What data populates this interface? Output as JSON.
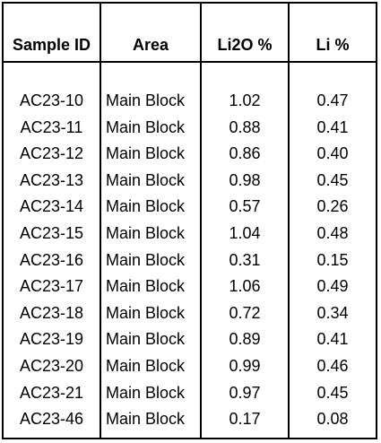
{
  "table": {
    "headers": [
      "Sample ID",
      "Area",
      "Li2O %",
      "Li %"
    ],
    "rows": [
      [
        "AC23-10",
        "Main Block",
        "1.02",
        "0.47"
      ],
      [
        "AC23-11",
        "Main Block",
        "0.88",
        "0.41"
      ],
      [
        "AC23-12",
        "Main Block",
        "0.86",
        "0.40"
      ],
      [
        "AC23-13",
        "Main Block",
        "0.98",
        "0.45"
      ],
      [
        "AC23-14",
        "Main Block",
        "0.57",
        "0.26"
      ],
      [
        "AC23-15",
        "Main Block",
        "1.04",
        "0.48"
      ],
      [
        "AC23-16",
        "Main Block",
        "0.31",
        "0.15"
      ],
      [
        "AC23-17",
        "Main Block",
        "1.06",
        "0.49"
      ],
      [
        "AC23-18",
        "Main Block",
        "0.72",
        "0.34"
      ],
      [
        "AC23-19",
        "Main Block",
        "0.89",
        "0.41"
      ],
      [
        "AC23-20",
        "Main Block",
        "0.99",
        "0.46"
      ],
      [
        "AC23-21",
        "Main Block",
        "0.97",
        "0.45"
      ],
      [
        "AC23-46",
        "Main Block",
        "0.17",
        "0.08"
      ]
    ]
  }
}
